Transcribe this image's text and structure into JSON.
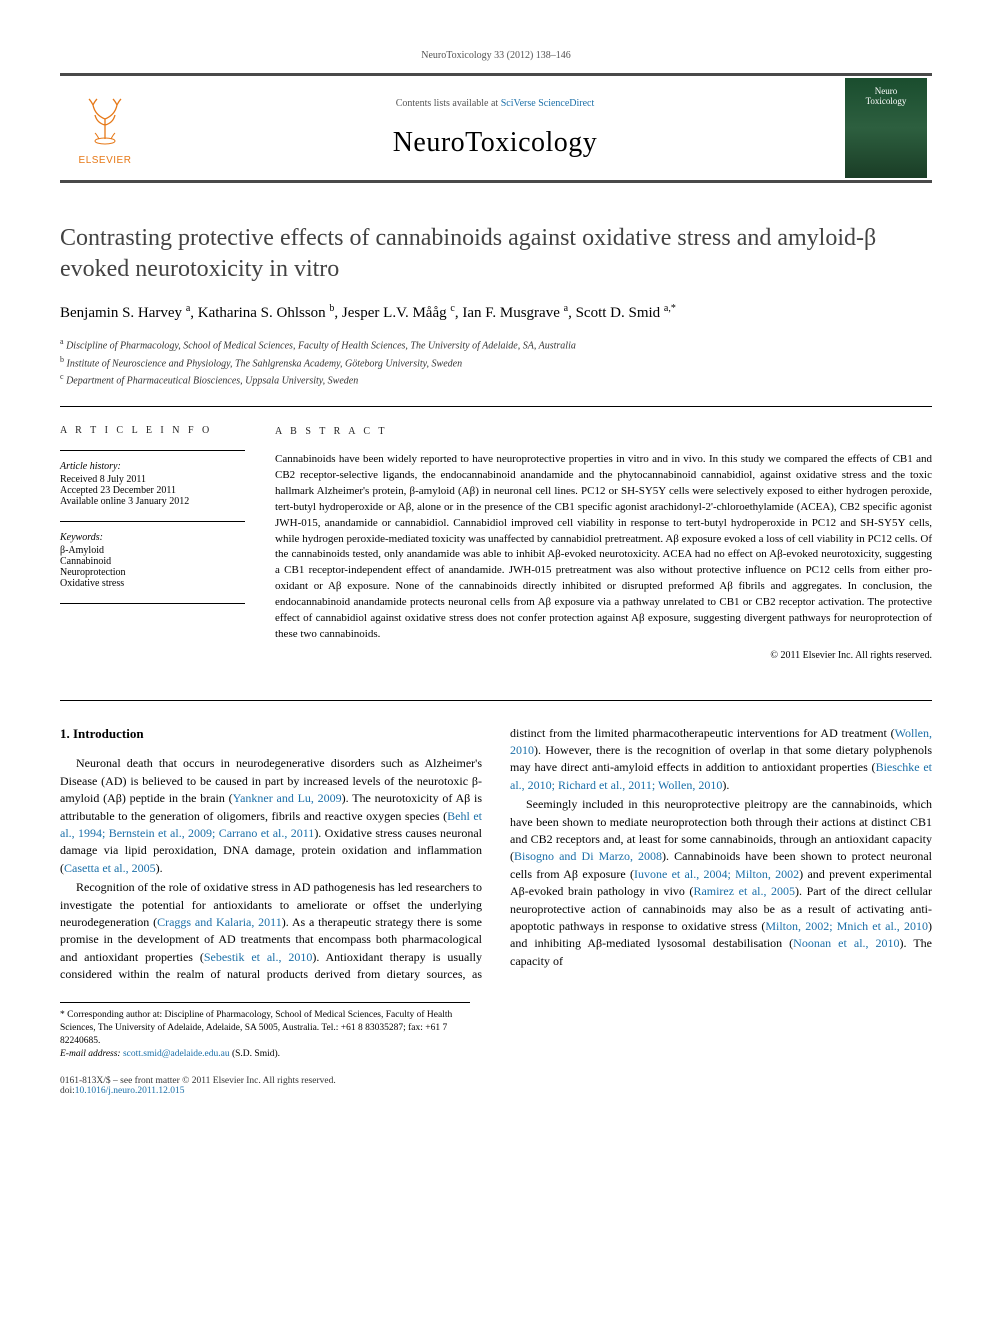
{
  "header": {
    "journal_ref": "NeuroToxicology 33 (2012) 138–146",
    "contents_text": "Contents lists available at ",
    "contents_link": "SciVerse ScienceDirect",
    "journal_name": "NeuroToxicology",
    "elsevier_label": "ELSEVIER",
    "cover_text_top": "Neuro",
    "cover_text_bottom": "Toxicology"
  },
  "article": {
    "title": "Contrasting protective effects of cannabinoids against oxidative stress and amyloid-β evoked neurotoxicity in vitro",
    "authors_html": "Benjamin S. Harvey <sup>a</sup>, Katharina S. Ohlsson <sup>b</sup>, Jesper L.V. Mååg <sup>c</sup>, Ian F. Musgrave <sup>a</sup>, Scott D. Smid <sup>a,*</sup>",
    "affiliations": {
      "a": "Discipline of Pharmacology, School of Medical Sciences, Faculty of Health Sciences, The University of Adelaide, SA, Australia",
      "b": "Institute of Neuroscience and Physiology, The Sahlgrenska Academy, Göteborg University, Sweden",
      "c": "Department of Pharmaceutical Biosciences, Uppsala University, Sweden"
    }
  },
  "meta": {
    "info_heading": "A R T I C L E   I N F O",
    "history_label": "Article history:",
    "received": "Received 8 July 2011",
    "accepted": "Accepted 23 December 2011",
    "online": "Available online 3 January 2012",
    "keywords_label": "Keywords:",
    "keywords": [
      "β-Amyloid",
      "Cannabinoid",
      "Neuroprotection",
      "Oxidative stress"
    ]
  },
  "abstract": {
    "heading": "A B S T R A C T",
    "text": "Cannabinoids have been widely reported to have neuroprotective properties in vitro and in vivo. In this study we compared the effects of CB1 and CB2 receptor-selective ligands, the endocannabinoid anandamide and the phytocannabinoid cannabidiol, against oxidative stress and the toxic hallmark Alzheimer's protein, β-amyloid (Aβ) in neuronal cell lines. PC12 or SH-SY5Y cells were selectively exposed to either hydrogen peroxide, tert-butyl hydroperoxide or Aβ, alone or in the presence of the CB1 specific agonist arachidonyl-2'-chloroethylamide (ACEA), CB2 specific agonist JWH-015, anandamide or cannabidiol. Cannabidiol improved cell viability in response to tert-butyl hydroperoxide in PC12 and SH-SY5Y cells, while hydrogen peroxide-mediated toxicity was unaffected by cannabidiol pretreatment. Aβ exposure evoked a loss of cell viability in PC12 cells. Of the cannabinoids tested, only anandamide was able to inhibit Aβ-evoked neurotoxicity. ACEA had no effect on Aβ-evoked neurotoxicity, suggesting a CB1 receptor-independent effect of anandamide. JWH-015 pretreatment was also without protective influence on PC12 cells from either pro-oxidant or Aβ exposure. None of the cannabinoids directly inhibited or disrupted preformed Aβ fibrils and aggregates. In conclusion, the endocannabinoid anandamide protects neuronal cells from Aβ exposure via a pathway unrelated to CB1 or CB2 receptor activation. The protective effect of cannabidiol against oxidative stress does not confer protection against Aβ exposure, suggesting divergent pathways for neuroprotection of these two cannabinoids.",
    "copyright": "© 2011 Elsevier Inc. All rights reserved."
  },
  "body": {
    "section_heading": "1. Introduction",
    "p1_a": "Neuronal death that occurs in neurodegenerative disorders such as Alzheimer's Disease (AD) is believed to be caused in part by increased levels of the neurotoxic β-amyloid (Aβ) peptide in the brain (",
    "p1_c1": "Yankner and Lu, 2009",
    "p1_b": "). The neurotoxicity of Aβ is attributable to the generation of oligomers, fibrils and reactive oxygen species (",
    "p1_c2": "Behl et al., 1994; Bernstein et al., 2009; Carrano et al., 2011",
    "p1_d": "). Oxidative stress causes neuronal damage via lipid peroxidation, DNA damage, protein oxidation and inflammation (",
    "p1_c3": "Casetta et al., 2005",
    "p1_e": ").",
    "p2_a": "Recognition of the role of oxidative stress in AD pathogenesis has led researchers to investigate the potential for antioxidants to ameliorate or offset the underlying neurodegeneration (",
    "p2_c1": "Craggs and Kalaria, 2011",
    "p2_b": "). As a therapeutic strategy there is some promise in ",
    "p2_c": "the development of AD treatments that encompass both pharmacological and antioxidant properties (",
    "p2_c2": "Sebestik et al., 2010",
    "p2_d": "). Antioxidant therapy is usually considered within the realm of natural products derived from dietary sources, as distinct from the limited pharmacotherapeutic interventions for AD treatment (",
    "p2_c3": "Wollen, 2010",
    "p2_e": "). However, there is the recognition of overlap in that some dietary polyphenols may have direct anti-amyloid effects in addition to antioxidant properties (",
    "p2_c4": "Bieschke et al., 2010; Richard et al., 2011; Wollen, 2010",
    "p2_f": ").",
    "p3_a": "Seemingly included in this neuroprotective pleitropy are the cannabinoids, which have been shown to mediate neuroprotection both through their actions at distinct CB1 and CB2 receptors and, at least for some cannabinoids, through an antioxidant capacity (",
    "p3_c1": "Bisogno and Di Marzo, 2008",
    "p3_b": "). Cannabinoids have been shown to protect neuronal cells from Aβ exposure (",
    "p3_c2": "Iuvone et al., 2004; Milton, 2002",
    "p3_c": ") and prevent experimental Aβ-evoked brain pathology in vivo (",
    "p3_c3": "Ramirez et al., 2005",
    "p3_d": "). Part of the direct cellular neuroprotective action of cannabinoids may also be as a result of activating anti-apoptotic pathways in response to oxidative stress (",
    "p3_c4": "Milton, 2002; Mnich et al., 2010",
    "p3_e": ") and inhibiting Aβ-mediated lysosomal destabilisation (",
    "p3_c5": "Noonan et al., 2010",
    "p3_f": "). The capacity of"
  },
  "corr": {
    "text": "* Corresponding author at: Discipline of Pharmacology, School of Medical Sciences, Faculty of Health Sciences, The University of Adelaide, Adelaide, SA 5005, Australia. Tel.: +61 8 83035287; fax: +61 7 82240685.",
    "email_label": "E-mail address: ",
    "email": "scott.smid@adelaide.edu.au",
    "email_who": " (S.D. Smid)."
  },
  "footer": {
    "line1": "0161-813X/$ – see front matter © 2011 Elsevier Inc. All rights reserved.",
    "doi_label": "doi:",
    "doi": "10.1016/j.neuro.2011.12.015"
  },
  "colors": {
    "link": "#1b6fa8",
    "elsevier_orange": "#e67817",
    "rule": "#494949"
  }
}
